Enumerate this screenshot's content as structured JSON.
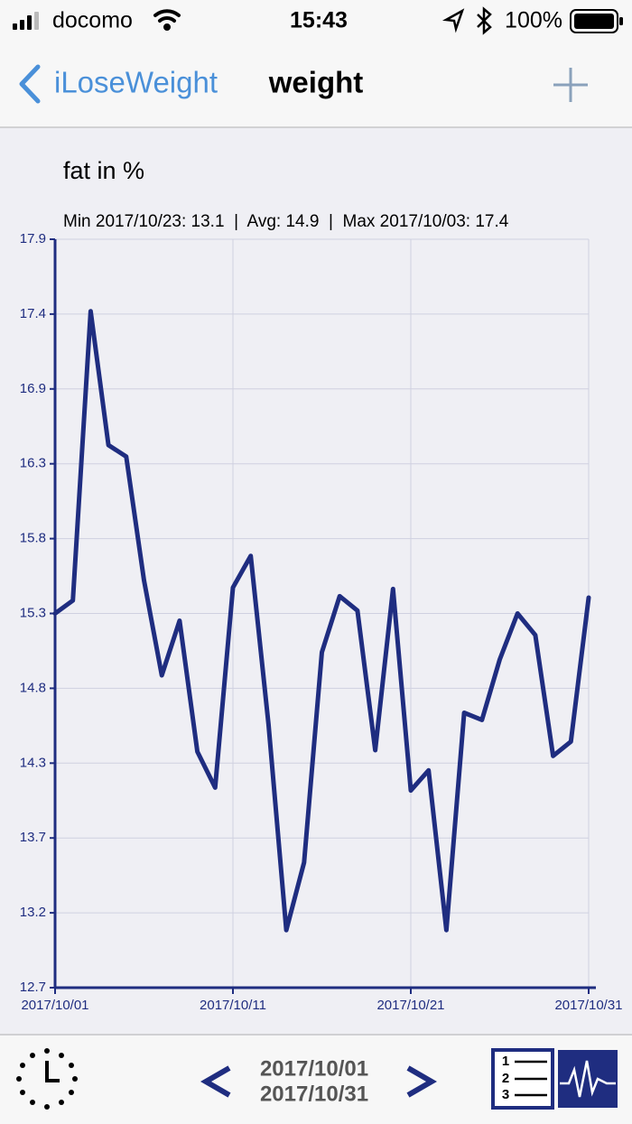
{
  "status_bar": {
    "carrier": "docomo",
    "time": "15:43",
    "battery": "100%"
  },
  "nav_bar": {
    "back": "iLoseWeight",
    "title": "weight"
  },
  "chart_data": {
    "type": "line",
    "title": "fat in %",
    "subtitle": "Min 2017/10/23: 13.1  |  Avg: 14.9  |  Max 2017/10/03: 17.4",
    "x": [
      "2017/10/01",
      "2017/10/02",
      "2017/10/03",
      "2017/10/04",
      "2017/10/05",
      "2017/10/06",
      "2017/10/07",
      "2017/10/08",
      "2017/10/09",
      "2017/10/10",
      "2017/10/11",
      "2017/10/12",
      "2017/10/13",
      "2017/10/14",
      "2017/10/15",
      "2017/10/16",
      "2017/10/17",
      "2017/10/18",
      "2017/10/19",
      "2017/10/20",
      "2017/10/21",
      "2017/10/22",
      "2017/10/23",
      "2017/10/24",
      "2017/10/25",
      "2017/10/26",
      "2017/10/27",
      "2017/10/28",
      "2017/10/29",
      "2017/10/30",
      "2017/10/31"
    ],
    "series": [
      {
        "color": "#1f2d80",
        "values": [
          15.3,
          15.39,
          17.4,
          16.47,
          16.39,
          15.53,
          14.87,
          15.25,
          14.34,
          14.09,
          15.48,
          15.7,
          14.53,
          13.1,
          13.57,
          15.03,
          15.42,
          15.32,
          14.35,
          15.47,
          14.07,
          14.21,
          13.1,
          14.61,
          14.56,
          14.98,
          15.3,
          15.15,
          14.31,
          14.41,
          15.41
        ]
      }
    ],
    "xlim": [
      "2017/10/01",
      "2017/10/31"
    ],
    "xticks": [
      "2017/10/01",
      "2017/10/11",
      "2017/10/21",
      "2017/10/31"
    ],
    "ylim": [
      12.7,
      17.9
    ],
    "yticks": [
      12.7,
      {
        "value": 13.22,
        "label": "13.2"
      },
      {
        "value": 13.74,
        "label": "13.7"
      },
      {
        "value": 14.26,
        "label": "14.3"
      },
      {
        "value": 14.78,
        "label": "14.8"
      },
      15.3,
      {
        "value": 15.82,
        "label": "15.8"
      },
      {
        "value": 16.34,
        "label": "16.3"
      },
      {
        "value": 16.86,
        "label": "16.9"
      },
      {
        "value": 17.38,
        "label": "17.4"
      },
      17.9
    ],
    "grid": true
  },
  "toolbar": {
    "range_start": "2017/10/01",
    "range_end": "2017/10/31"
  }
}
